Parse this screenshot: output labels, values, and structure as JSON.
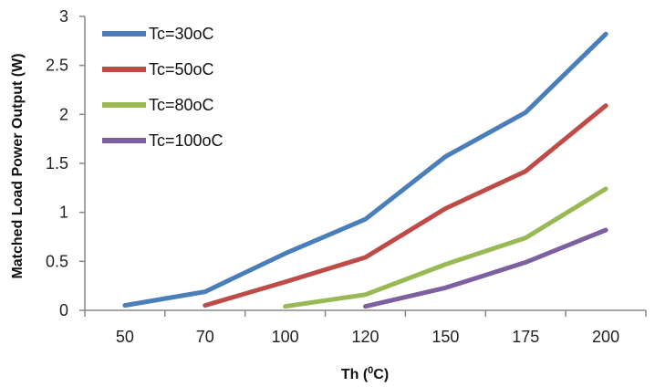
{
  "chart_data": {
    "type": "line",
    "title": "",
    "xlabel_main": "Th (",
    "xlabel_sup": "0",
    "xlabel_end": "C)",
    "ylabel": "Matched Load Power Output (W)",
    "categories": [
      "50",
      "70",
      "100",
      "120",
      "150",
      "175",
      "200"
    ],
    "ylim": [
      0,
      3
    ],
    "yticks": [
      0,
      0.5,
      1,
      1.5,
      2,
      2.5,
      3
    ],
    "ytick_labels": [
      "0",
      "0.5",
      "1",
      "1.5",
      "2",
      "2.5",
      "3"
    ],
    "grid": false,
    "legend_position": "top-left",
    "series": [
      {
        "name": "Tc=30oC",
        "color": "#4a7ebb",
        "values": [
          0.05,
          0.19,
          0.58,
          0.93,
          1.57,
          2.02,
          2.82
        ]
      },
      {
        "name": "Tc=50oC",
        "color": "#be4b48",
        "values": [
          null,
          0.05,
          0.29,
          0.54,
          1.04,
          1.42,
          2.09
        ]
      },
      {
        "name": "Tc=80oC",
        "color": "#98b954",
        "values": [
          null,
          null,
          0.04,
          0.16,
          0.47,
          0.74,
          1.24
        ]
      },
      {
        "name": "Tc=100oC",
        "color": "#7d60a0",
        "values": [
          null,
          null,
          null,
          0.04,
          0.23,
          0.49,
          0.82
        ]
      }
    ]
  }
}
